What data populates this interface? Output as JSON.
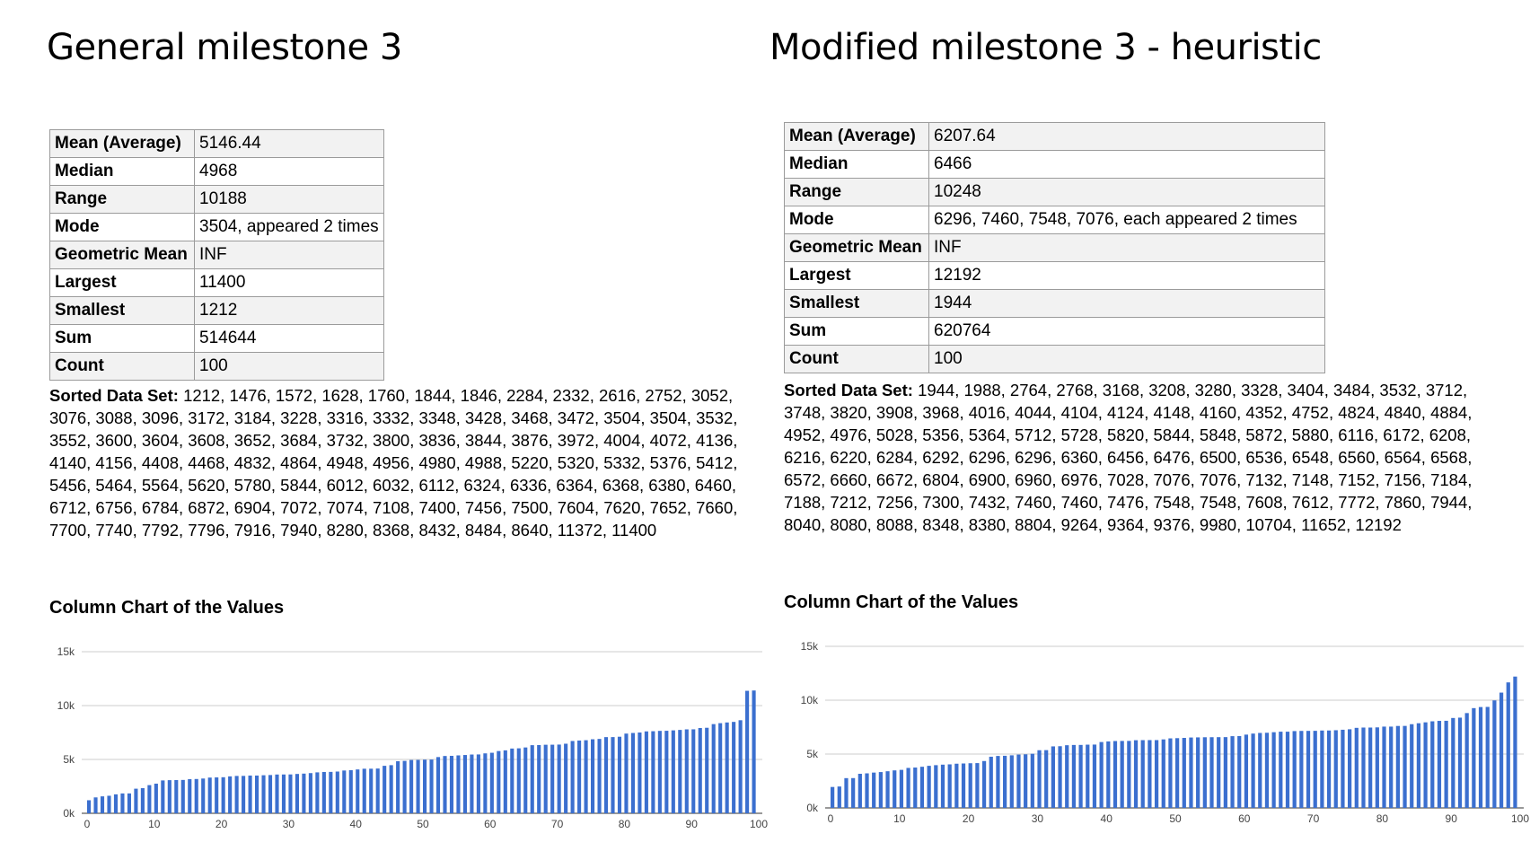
{
  "panels": [
    {
      "heading": "General milestone 3",
      "stats": [
        {
          "label": "Mean (Average)",
          "value": "5146.44"
        },
        {
          "label": "Median",
          "value": "4968"
        },
        {
          "label": "Range",
          "value": "10188"
        },
        {
          "label": "Mode",
          "value": "3504, appeared 2 times"
        },
        {
          "label": "Geometric Mean",
          "value": "INF"
        },
        {
          "label": "Largest",
          "value": "11400"
        },
        {
          "label": "Smallest",
          "value": "1212"
        },
        {
          "label": "Sum",
          "value": "514644"
        },
        {
          "label": "Count",
          "value": "100"
        }
      ],
      "sorted_label": "Sorted Data Set:",
      "sorted_values": "1212, 1476, 1572, 1628, 1760, 1844, 1846, 2284, 2332, 2616, 2752, 3052, 3076, 3088, 3096, 3172, 3184, 3228, 3316, 3332, 3348, 3428, 3468, 3472, 3504, 3504, 3532, 3552, 3600, 3604, 3608, 3652, 3684, 3732, 3800, 3836, 3844, 3876, 3972, 4004, 4072, 4136, 4140, 4156, 4408, 4468, 4832, 4864, 4948, 4956, 4980, 4988, 5220, 5320, 5332, 5376, 5412, 5456, 5464, 5564, 5620, 5780, 5844, 6012, 6032, 6112, 6324, 6336, 6364, 6368, 6380, 6460, 6712, 6756, 6784, 6872, 6904, 7072, 7074, 7108, 7400, 7456, 7500, 7604, 7620, 7652, 7660, 7700, 7740, 7792, 7796, 7916, 7940, 8280, 8368, 8432, 8484, 8640, 11372, 11400",
      "chart_title": "Column Chart of the Values"
    },
    {
      "heading": "Modified milestone 3 - heuristic",
      "stats": [
        {
          "label": "Mean (Average)",
          "value": "6207.64"
        },
        {
          "label": "Median",
          "value": "6466"
        },
        {
          "label": "Range",
          "value": "10248"
        },
        {
          "label": "Mode",
          "value": "6296, 7460, 7548, 7076, each appeared 2 times"
        },
        {
          "label": "Geometric Mean",
          "value": "INF"
        },
        {
          "label": "Largest",
          "value": "12192"
        },
        {
          "label": "Smallest",
          "value": "1944"
        },
        {
          "label": "Sum",
          "value": "620764"
        },
        {
          "label": "Count",
          "value": "100"
        }
      ],
      "sorted_label": "Sorted Data Set:",
      "sorted_values": "1944, 1988, 2764, 2768, 3168, 3208, 3280, 3328, 3404, 3484, 3532, 3712, 3748, 3820, 3908, 3968, 4016, 4044, 4104, 4124, 4148, 4160, 4352, 4752, 4824, 4840, 4884, 4952, 4976, 5028, 5356, 5364, 5712, 5728, 5820, 5844, 5848, 5872, 5880, 6116, 6172, 6208, 6216, 6220, 6284, 6292, 6296, 6296, 6360, 6456, 6476, 6500, 6536, 6548, 6560, 6564, 6568, 6572, 6660, 6672, 6804, 6900, 6960, 6976, 7028, 7076, 7076, 7132, 7148, 7152, 7156, 7184, 7188, 7212, 7256, 7300, 7432, 7460, 7460, 7476, 7548, 7548, 7608, 7612, 7772, 7860, 7944, 8040, 8080, 8088, 8348, 8380, 8804, 9264, 9364, 9376, 9980, 10704, 11652, 12192",
      "chart_title": "Column Chart of the Values"
    }
  ],
  "chart_data": [
    {
      "type": "bar",
      "title": "Column Chart of the Values",
      "xlabel": "",
      "ylabel": "",
      "ylim": [
        0,
        15000
      ],
      "y_ticks": [
        "0k",
        "5k",
        "10k",
        "15k"
      ],
      "x_ticks": [
        "0",
        "10",
        "20",
        "30",
        "40",
        "50",
        "60",
        "70",
        "80",
        "90",
        "100"
      ],
      "grid": true,
      "color": "#3b6fcf",
      "values": [
        1212,
        1476,
        1572,
        1628,
        1760,
        1844,
        1846,
        2284,
        2332,
        2616,
        2752,
        3052,
        3076,
        3088,
        3096,
        3172,
        3184,
        3228,
        3316,
        3332,
        3348,
        3428,
        3468,
        3472,
        3504,
        3504,
        3532,
        3552,
        3600,
        3604,
        3608,
        3652,
        3684,
        3732,
        3800,
        3836,
        3844,
        3876,
        3972,
        4004,
        4072,
        4136,
        4140,
        4156,
        4408,
        4468,
        4832,
        4864,
        4948,
        4956,
        4980,
        4988,
        5220,
        5320,
        5332,
        5376,
        5412,
        5456,
        5464,
        5564,
        5620,
        5780,
        5844,
        6012,
        6032,
        6112,
        6324,
        6336,
        6364,
        6368,
        6380,
        6460,
        6712,
        6756,
        6784,
        6872,
        6904,
        7072,
        7074,
        7108,
        7400,
        7456,
        7500,
        7604,
        7620,
        7652,
        7660,
        7700,
        7740,
        7792,
        7796,
        7916,
        7940,
        8280,
        8368,
        8432,
        8484,
        8640,
        11372,
        11400
      ]
    },
    {
      "type": "bar",
      "title": "Column Chart of the Values",
      "xlabel": "",
      "ylabel": "",
      "ylim": [
        0,
        15000
      ],
      "y_ticks": [
        "0k",
        "5k",
        "10k",
        "15k"
      ],
      "x_ticks": [
        "0",
        "10",
        "20",
        "30",
        "40",
        "50",
        "60",
        "70",
        "80",
        "90",
        "100"
      ],
      "grid": true,
      "color": "#3b6fcf",
      "values": [
        1944,
        1988,
        2764,
        2768,
        3168,
        3208,
        3280,
        3328,
        3404,
        3484,
        3532,
        3712,
        3748,
        3820,
        3908,
        3968,
        4016,
        4044,
        4104,
        4124,
        4148,
        4160,
        4352,
        4752,
        4824,
        4840,
        4884,
        4952,
        4976,
        5028,
        5356,
        5364,
        5712,
        5728,
        5820,
        5844,
        5848,
        5872,
        5880,
        6116,
        6172,
        6208,
        6216,
        6220,
        6284,
        6292,
        6296,
        6296,
        6360,
        6456,
        6476,
        6500,
        6536,
        6548,
        6560,
        6564,
        6568,
        6572,
        6660,
        6672,
        6804,
        6900,
        6960,
        6976,
        7028,
        7076,
        7076,
        7132,
        7148,
        7152,
        7156,
        7184,
        7188,
        7212,
        7256,
        7300,
        7432,
        7460,
        7460,
        7476,
        7548,
        7548,
        7608,
        7612,
        7772,
        7860,
        7944,
        8040,
        8080,
        8088,
        8348,
        8380,
        8804,
        9264,
        9364,
        9376,
        9980,
        10704,
        11652,
        12192
      ]
    }
  ]
}
